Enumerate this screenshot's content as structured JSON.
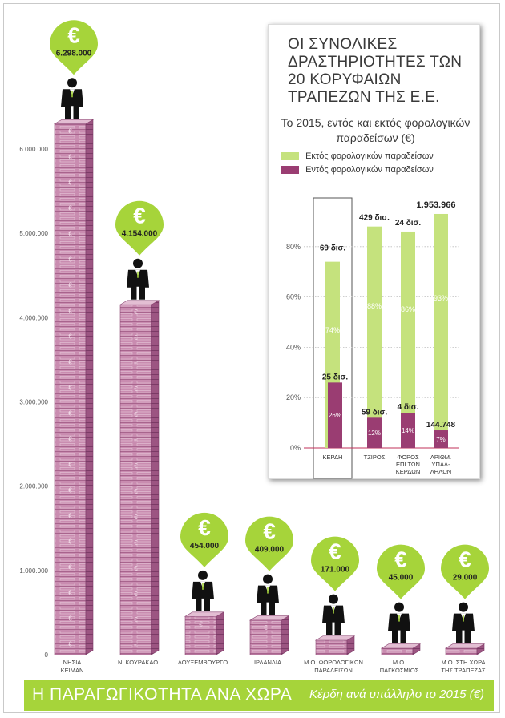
{
  "footer": {
    "title": "Η ΠΑΡΑΓΩΓΙΚΟΤΗΤΑ ΑΝΑ ΧΩΡΑ",
    "subtitle": "Κέρδη ανά υπάλληλο το 2015 (€)"
  },
  "colors": {
    "accent_green": "#a6d43a",
    "stack_pink": "#c17aa4",
    "stack_dark": "#8b4673",
    "inset_green": "#c5e27d",
    "inset_purple": "#9a3d72"
  },
  "icons": {
    "pin": "euro-pin-icon",
    "figure": "businessman-icon"
  },
  "chart_data": [
    {
      "type": "bar",
      "title": "Η ΠΑΡΑΓΩΓΙΚΟΤΗΤΑ ΑΝΑ ΧΩΡΑ",
      "subtitle": "Κέρδη ανά υπάλληλο το 2015 (€)",
      "categories": [
        [
          "ΝΗΣΙΑ",
          "ΚΕΪΜΑΝ"
        ],
        [
          "Ν. ΚΟΥΡΑΚΑΟ"
        ],
        [
          "ΛΟΥΞΕΜΒΟΥΡΓΟ"
        ],
        [
          "ΙΡΛΑΝΔΙΑ"
        ],
        [
          "Μ.Ο. ΦΟΡΟΛΟΓΙΚΩΝ",
          "ΠΑΡΑΔΕΙΣΩΝ"
        ],
        [
          "Μ.Ο.",
          "ΠΑΓΚΟΣΜΙΟΣ"
        ],
        [
          "Μ.Ο. ΣΤΗ ΧΩΡΑ",
          "ΤΗΣ ΤΡΑΠΕΖΑΣ"
        ]
      ],
      "values": [
        6298000,
        4154000,
        454000,
        409000,
        171000,
        45000,
        29000
      ],
      "value_labels": [
        "6.298.000",
        "4.154.000",
        "454.000",
        "409.000",
        "171.000",
        "45.000",
        "29.000"
      ],
      "yticks": [
        0,
        1000000,
        2000000,
        3000000,
        4000000,
        5000000,
        6000000
      ],
      "ytick_labels": [
        "0",
        "1.000.000",
        "2.000.000",
        "3.000.000",
        "4.000.000",
        "5.000.000",
        "6.000.000"
      ],
      "ylim": [
        0,
        6500000
      ],
      "grid": false
    },
    {
      "type": "bar",
      "title": "ΟΙ ΣΥΝΟΛΙΚΕΣ ΔΡΑΣΤΗΡΙΟΤΗΤΕΣ ΤΩΝ 20 ΚΟΡΥΦΑΙΩΝ ΤΡΑΠΕΖΩΝ ΤΗΣ Ε.Ε.",
      "subtitle": "Το 2015, εντός και εκτός φορολογικών παραδείσων (€)",
      "categories": [
        [
          "ΚΕΡΔΗ"
        ],
        [
          "ΤΖΙΡΟΣ"
        ],
        [
          "ΦΟΡΟΣ",
          "ΕΠΙ ΤΩΝ",
          "ΚΕΡΔΩΝ"
        ],
        [
          "ΑΡΙΘΜ.",
          "ΥΠΑΛ-",
          "ΛΗΛΩΝ"
        ]
      ],
      "series": [
        {
          "name": "Εκτός φορολογικών παραδείσων",
          "values": [
            74,
            88,
            86,
            93
          ],
          "value_labels": [
            "74%",
            "88%",
            "86%",
            "93%"
          ],
          "totals": [
            "69 δισ.",
            "429 δισ.",
            "24 δισ.",
            "1.953.966"
          ]
        },
        {
          "name": "Εντός φορολογικών παραδείσων",
          "values": [
            26,
            12,
            14,
            7
          ],
          "value_labels": [
            "26%",
            "12%",
            "14%",
            "7%"
          ],
          "amounts": [
            "25 δισ.",
            "59 δισ.",
            "4 δισ.",
            "144.748"
          ]
        }
      ],
      "yticks": [
        0,
        20,
        40,
        60,
        80
      ],
      "ytick_labels": [
        "0%",
        "20%",
        "40%",
        "60%",
        "80%"
      ],
      "ylim": [
        0,
        100
      ],
      "grid": true,
      "legend": "top",
      "highlighted_category": "ΚΕΡΔΗ"
    }
  ]
}
